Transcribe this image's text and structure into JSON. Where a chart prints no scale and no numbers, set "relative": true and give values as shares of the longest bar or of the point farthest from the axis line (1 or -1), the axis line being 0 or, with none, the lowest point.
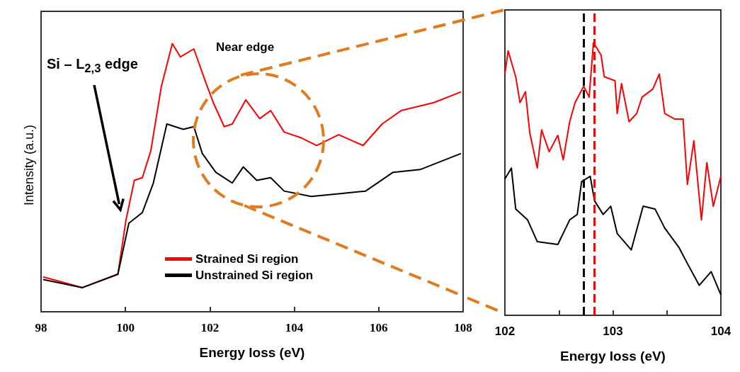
{
  "chart_data": [
    {
      "type": "line",
      "relative": true,
      "xlabel": "Energy loss (eV)",
      "ylabel": "Intensity (a.u.)",
      "xlim": [
        98,
        108
      ],
      "xticks": [
        98,
        100,
        102,
        104,
        106,
        108
      ],
      "legend": "bottom",
      "annotations": [
        "Si – L$_{2,3}$ edge",
        "Near edge"
      ],
      "series": [
        {
          "name": "Strained Si region",
          "color": "#ff0000",
          "x": [
            98.05,
            98.98,
            99.82,
            100.01,
            100.21,
            100.4,
            100.6,
            100.85,
            101.11,
            101.3,
            101.62,
            101.89,
            102.08,
            102.34,
            102.53,
            102.85,
            103.18,
            103.44,
            103.76,
            104.14,
            104.53,
            105.05,
            105.63,
            106.08,
            106.53,
            107.31,
            107.95
          ],
          "values": [
            0.13,
            0.09,
            0.14,
            0.34,
            0.49,
            0.5,
            0.6,
            0.84,
            1,
            0.95,
            0.98,
            0.86,
            0.78,
            0.69,
            0.7,
            0.79,
            0.72,
            0.75,
            0.67,
            0.65,
            0.62,
            0.66,
            0.62,
            0.7,
            0.75,
            0.78,
            0.82
          ]
        },
        {
          "name": "Unstrained Si region",
          "color": "#000000",
          "x": [
            98.05,
            98.98,
            99.82,
            100.08,
            100.4,
            100.66,
            100.98,
            101.37,
            101.62,
            101.82,
            102.14,
            102.53,
            102.79,
            103.11,
            103.44,
            103.76,
            104.4,
            105.05,
            105.69,
            106.34,
            106.98,
            107.95
          ],
          "values": [
            0.12,
            0.09,
            0.14,
            0.33,
            0.37,
            0.48,
            0.7,
            0.68,
            0.69,
            0.59,
            0.52,
            0.48,
            0.54,
            0.49,
            0.5,
            0.45,
            0.43,
            0.44,
            0.45,
            0.52,
            0.53,
            0.59
          ]
        }
      ]
    },
    {
      "type": "line",
      "relative": true,
      "xlabel": "Energy loss (eV)",
      "xlim": [
        102,
        104
      ],
      "xticks": [
        102,
        {
          "value": 102.5,
          "label": null
        },
        103,
        {
          "value": 103.5,
          "label": null
        },
        104
      ],
      "ref_lines": [
        {
          "axis": "x",
          "value": 102.73,
          "color": "#000000",
          "line_style": "dashed"
        },
        {
          "axis": "x",
          "value": 102.83,
          "color": "#ff0000",
          "line_style": "dashed"
        }
      ],
      "series": [
        {
          "color": "#ff0000",
          "x": [
            102,
            102.03,
            102.1,
            102.14,
            102.19,
            102.23,
            102.3,
            102.34,
            102.41,
            102.49,
            102.54,
            102.6,
            102.65,
            102.73,
            102.78,
            102.82,
            102.89,
            102.92,
            103.02,
            103.04,
            103.08,
            103.15,
            103.22,
            103.27,
            103.37,
            103.43,
            103.48,
            103.57,
            103.65,
            103.69,
            103.75,
            103.82,
            103.87,
            103.93,
            104
          ],
          "values": [
            0.885,
            0.97,
            0.875,
            0.78,
            0.82,
            0.67,
            0.54,
            0.68,
            0.6,
            0.66,
            0.57,
            0.71,
            0.78,
            0.84,
            0.8,
            1,
            0.955,
            0.875,
            0.86,
            0.74,
            0.85,
            0.71,
            0.74,
            0.8,
            0.83,
            0.885,
            0.74,
            0.72,
            0.72,
            0.48,
            0.64,
            0.35,
            0.56,
            0.4,
            0.51
          ]
        },
        {
          "color": "#000000",
          "x": [
            102,
            102.06,
            102.1,
            102.21,
            102.3,
            102.49,
            102.6,
            102.67,
            102.71,
            102.79,
            102.83,
            102.91,
            102.98,
            103.04,
            103.17,
            103.28,
            103.39,
            103.48,
            103.61,
            103.69,
            103.8,
            103.91,
            104
          ],
          "values": [
            0.5,
            0.54,
            0.39,
            0.35,
            0.27,
            0.26,
            0.35,
            0.37,
            0.49,
            0.51,
            0.42,
            0.37,
            0.4,
            0.3,
            0.24,
            0.4,
            0.39,
            0.32,
            0.25,
            0.19,
            0.11,
            0.16,
            0.075
          ]
        }
      ]
    }
  ]
}
